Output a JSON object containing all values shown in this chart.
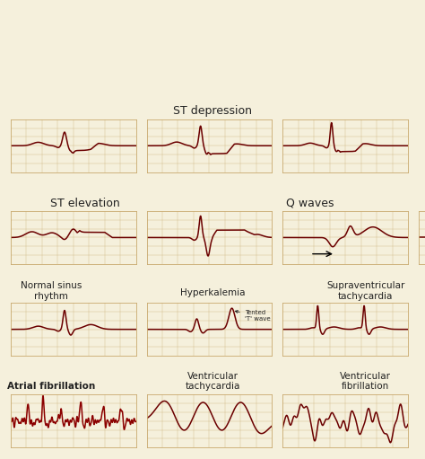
{
  "bg_color": "#F5F0DC",
  "grid_color": "#C8A96E",
  "ecg_color": "#6B0000",
  "fig_bg": "#F5F0DC",
  "labels": {
    "row0_title": "ST depression",
    "row1_left": "ST elevation",
    "row1_right": "Q waves",
    "row2_c0": "Normal sinus\nrhythm",
    "row2_c1": "Hyperkalemia",
    "row2_c2": "Supraventricular\ntachycardia",
    "row2_annot": "Tented\n'T' wave",
    "row3_c0": "Atrial fibrillation",
    "row3_c1": "Ventricular\ntachycardia",
    "row3_c2": "Ventricular\nfibrillation"
  }
}
